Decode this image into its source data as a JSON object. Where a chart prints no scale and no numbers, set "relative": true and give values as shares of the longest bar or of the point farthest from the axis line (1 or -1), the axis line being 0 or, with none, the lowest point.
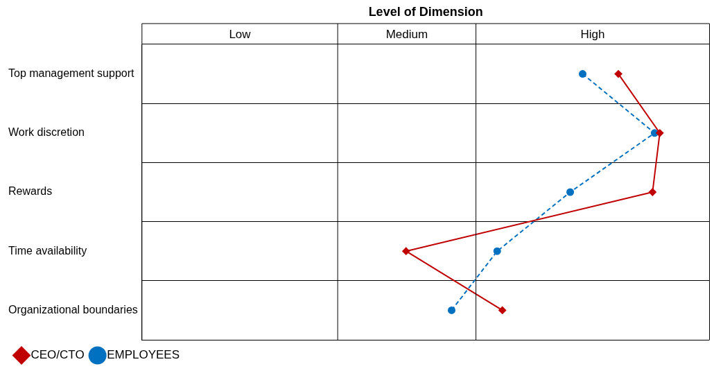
{
  "chart_data": {
    "type": "line",
    "orientation": "horizontal",
    "relative": true,
    "xlabel": "Level of Dimension",
    "categories": [
      "Top management support",
      "Work discretion",
      "Rewards",
      "Time availability",
      "Organizational boundaries"
    ],
    "ref_lines": [
      {
        "axis": "x",
        "value": 0.378,
        "color": "#000000"
      },
      {
        "axis": "x",
        "value": 0.645,
        "color": "#000000"
      },
      {
        "axis": "x",
        "value": 1.096,
        "color": "#000000"
      }
    ],
    "annotations": [
      "Low",
      "Medium",
      "High"
    ],
    "series": [
      {
        "name": "CEO/CTO",
        "color": "#c00000",
        "values": [
          0.92,
          1.0,
          0.986,
          0.51,
          0.696
        ],
        "marker": "diamond",
        "line_style": "solid"
      },
      {
        "name": "EMPLOYEES",
        "color": "#0070c0",
        "values": [
          0.851,
          0.99,
          0.827,
          0.686,
          0.598
        ],
        "marker": "circle",
        "line_style": "dashed"
      }
    ],
    "grid": true,
    "legend": "bottom"
  }
}
